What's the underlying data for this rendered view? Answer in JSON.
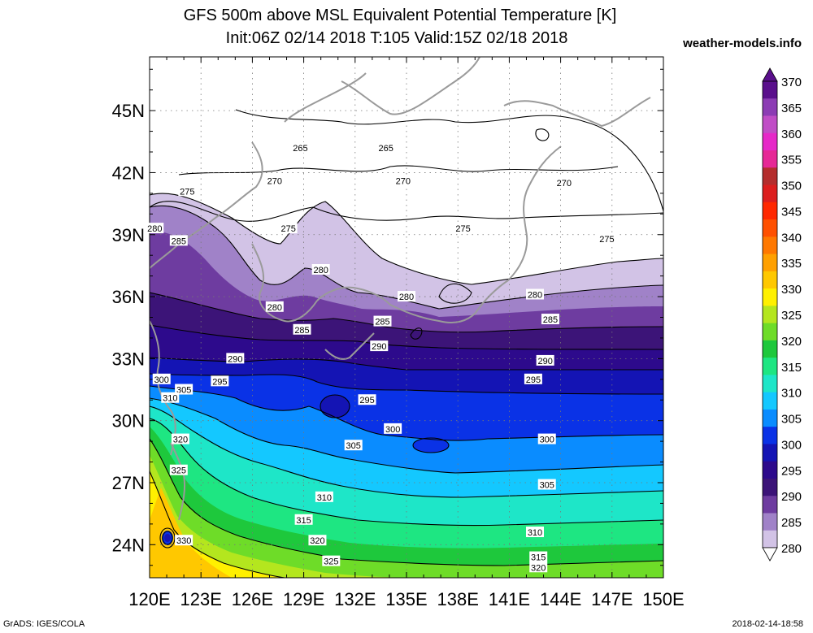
{
  "header": {
    "title_line1": "GFS 500m above MSL Equivalent Potential Temperature [K]",
    "title_line2": "Init:06Z 02/14 2018 T:105 Valid:15Z 02/18 2018",
    "site": "weather-models.info"
  },
  "footer": {
    "left": "GrADS: IGES/COLA",
    "right": "2018-02-14-18:58"
  },
  "map": {
    "lon_labels": [
      "120E",
      "123E",
      "126E",
      "129E",
      "132E",
      "135E",
      "138E",
      "141E",
      "144E",
      "147E",
      "150E"
    ],
    "lat_labels": [
      "45N",
      "42N",
      "39N",
      "36N",
      "33N",
      "30N",
      "27N",
      "24N"
    ],
    "lat_values": [
      45,
      42,
      39,
      36,
      33,
      30,
      27,
      24
    ],
    "lon_range": [
      120,
      150
    ],
    "lat_range": [
      22.4,
      47.6
    ],
    "contour_labels": [
      {
        "text": "265",
        "lon": 128.8,
        "lat": 43.2
      },
      {
        "text": "265",
        "lon": 133.8,
        "lat": 43.2
      },
      {
        "text": "270",
        "lon": 127.3,
        "lat": 41.6
      },
      {
        "text": "270",
        "lon": 134.8,
        "lat": 41.6
      },
      {
        "text": "270",
        "lon": 144.2,
        "lat": 41.5
      },
      {
        "text": "275",
        "lon": 122.2,
        "lat": 41.1
      },
      {
        "text": "275",
        "lon": 128.1,
        "lat": 39.3
      },
      {
        "text": "275",
        "lon": 138.3,
        "lat": 39.3
      },
      {
        "text": "275",
        "lon": 146.7,
        "lat": 38.8
      },
      {
        "text": "280",
        "lon": 120.3,
        "lat": 39.3
      },
      {
        "text": "280",
        "lon": 130.0,
        "lat": 37.3
      },
      {
        "text": "280",
        "lon": 135.0,
        "lat": 36.0
      },
      {
        "text": "280",
        "lon": 142.5,
        "lat": 36.1
      },
      {
        "text": "280",
        "lon": 127.3,
        "lat": 35.5
      },
      {
        "text": "285",
        "lon": 121.7,
        "lat": 38.7
      },
      {
        "text": "285",
        "lon": 128.9,
        "lat": 34.4
      },
      {
        "text": "285",
        "lon": 133.6,
        "lat": 34.8
      },
      {
        "text": "285",
        "lon": 143.4,
        "lat": 34.9
      },
      {
        "text": "290",
        "lon": 125.0,
        "lat": 33.0
      },
      {
        "text": "290",
        "lon": 133.4,
        "lat": 33.6
      },
      {
        "text": "290",
        "lon": 143.1,
        "lat": 32.9
      },
      {
        "text": "295",
        "lon": 124.1,
        "lat": 31.9
      },
      {
        "text": "295",
        "lon": 132.7,
        "lat": 31.0
      },
      {
        "text": "295",
        "lon": 142.4,
        "lat": 32.0
      },
      {
        "text": "300",
        "lon": 120.7,
        "lat": 32.0
      },
      {
        "text": "300",
        "lon": 134.2,
        "lat": 29.6
      },
      {
        "text": "300",
        "lon": 143.2,
        "lat": 29.1
      },
      {
        "text": "305",
        "lon": 122.0,
        "lat": 31.5
      },
      {
        "text": "305",
        "lon": 131.9,
        "lat": 28.8
      },
      {
        "text": "305",
        "lon": 143.2,
        "lat": 26.9
      },
      {
        "text": "310",
        "lon": 121.2,
        "lat": 31.1
      },
      {
        "text": "310",
        "lon": 130.2,
        "lat": 26.3
      },
      {
        "text": "310",
        "lon": 142.5,
        "lat": 24.6
      },
      {
        "text": "315",
        "lon": 129.0,
        "lat": 25.2
      },
      {
        "text": "315",
        "lon": 142.7,
        "lat": 23.4
      },
      {
        "text": "320",
        "lon": 121.8,
        "lat": 29.1
      },
      {
        "text": "320",
        "lon": 129.8,
        "lat": 24.2
      },
      {
        "text": "320",
        "lon": 142.7,
        "lat": 22.9
      },
      {
        "text": "325",
        "lon": 121.7,
        "lat": 27.6
      },
      {
        "text": "325",
        "lon": 130.6,
        "lat": 23.2
      },
      {
        "text": "330",
        "lon": 122.0,
        "lat": 24.2
      }
    ]
  },
  "colorbar": {
    "labels": [
      "370",
      "365",
      "360",
      "355",
      "350",
      "345",
      "340",
      "335",
      "330",
      "325",
      "320",
      "315",
      "310",
      "305",
      "300",
      "295",
      "290",
      "285",
      "280"
    ],
    "colors": [
      "#5a0f8c",
      "#8c3cb4",
      "#c04dc6",
      "#e628c8",
      "#e62896",
      "#b42d2d",
      "#dc1e1e",
      "#ff2800",
      "#ff5000",
      "#ff7800",
      "#ffa000",
      "#ffc800",
      "#fff000",
      "#b4e61e",
      "#6edc28",
      "#1ec83c",
      "#1ee682",
      "#1ee6c8",
      "#14c8ff",
      "#0a8cff",
      "#0a32e6",
      "#1414b4",
      "#2d0a8c",
      "#3c1478",
      "#6e3ca0",
      "#a082c8",
      "#d2c3e6"
    ]
  }
}
